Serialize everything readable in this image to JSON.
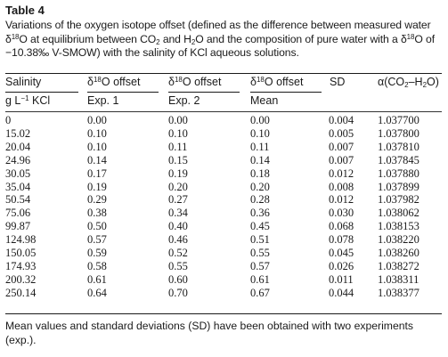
{
  "table_title": "Table 4",
  "caption": {
    "part1": "Variations of the oxygen isotope offset (defined as the difference between measured water δ",
    "sup1": "18",
    "part2": "O at equilibrium between CO",
    "sub1": "2",
    "part3": " and H",
    "sub2": "2",
    "part4": "O and the composition of pure water with a δ",
    "sup2": "18",
    "part5": "O of −10.38‰ V-SMOW) with the salinity of KCl aqueous solutions."
  },
  "headers": {
    "col0": {
      "line1": "Salinity",
      "line2_a": "g L",
      "line2_sup": "−1",
      "line2_b": " KCl"
    },
    "col1": {
      "pre": "δ",
      "sup": "18",
      "post": "O offset",
      "line2": "Exp. 1"
    },
    "col2": {
      "pre": "δ",
      "sup": "18",
      "post": "O offset",
      "line2": "Exp. 2"
    },
    "col3": {
      "pre": "δ",
      "sup": "18",
      "post": "O offset",
      "line2": "Mean"
    },
    "col4": {
      "line1": "SD"
    },
    "col5": {
      "pre": "α(CO",
      "sub1": "2",
      "mid": "–H",
      "sub2": "2",
      "post": "O)"
    }
  },
  "rows": [
    [
      "0",
      "0.00",
      "0.00",
      "0.00",
      "0.004",
      "1.037700"
    ],
    [
      "15.02",
      "0.10",
      "0.10",
      "0.10",
      "0.005",
      "1.037800"
    ],
    [
      "20.04",
      "0.10",
      "0.11",
      "0.11",
      "0.007",
      "1.037810"
    ],
    [
      "24.96",
      "0.14",
      "0.15",
      "0.14",
      "0.007",
      "1.037845"
    ],
    [
      "30.05",
      "0.17",
      "0.19",
      "0.18",
      "0.012",
      "1.037880"
    ],
    [
      "35.04",
      "0.19",
      "0.20",
      "0.20",
      "0.008",
      "1.037899"
    ],
    [
      "50.54",
      "0.29",
      "0.27",
      "0.28",
      "0.012",
      "1.037982"
    ],
    [
      "75.06",
      "0.38",
      "0.34",
      "0.36",
      "0.030",
      "1.038062"
    ],
    [
      "99.87",
      "0.50",
      "0.40",
      "0.45",
      "0.068",
      "1.038153"
    ],
    [
      "124.98",
      "0.57",
      "0.46",
      "0.51",
      "0.078",
      "1.038220"
    ],
    [
      "150.05",
      "0.59",
      "0.52",
      "0.55",
      "0.045",
      "1.038260"
    ],
    [
      "174.93",
      "0.58",
      "0.55",
      "0.57",
      "0.026",
      "1.038272"
    ],
    [
      "200.32",
      "0.61",
      "0.60",
      "0.61",
      "0.011",
      "1.038311"
    ],
    [
      "250.14",
      "0.64",
      "0.70",
      "0.67",
      "0.044",
      "1.038377"
    ]
  ],
  "footnote": "Mean values and standard deviations (SD) have been obtained with two experiments (exp.)."
}
